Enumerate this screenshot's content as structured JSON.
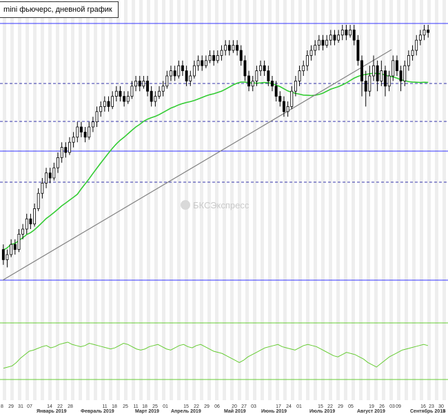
{
  "title": "mini фьючерс, дневной график",
  "watermark": "БКСЭкспресс",
  "colors": {
    "candle_up": "#ffffff",
    "candle_down": "#000000",
    "ma": "#33cc33",
    "hline_solid": "#3333ff",
    "hline_dashed": "#3333aa",
    "trendline": "#808080",
    "oscillator": "#66cc33",
    "oscillator_bounds": "#66cc33",
    "stripe": "#eeeeee"
  },
  "chart_data": [
    {
      "type": "candlestick",
      "series_name": "",
      "ylim": [
        0,
        100
      ],
      "note": "price values in relative scale 0-100 (no price axis printed)",
      "candles": [
        [
          12,
          8,
          14,
          6
        ],
        [
          8,
          10,
          12,
          5
        ],
        [
          10,
          14,
          16,
          9
        ],
        [
          14,
          12,
          16,
          10
        ],
        [
          12,
          18,
          20,
          11
        ],
        [
          18,
          20,
          22,
          16
        ],
        [
          20,
          24,
          26,
          18
        ],
        [
          24,
          22,
          26,
          20
        ],
        [
          22,
          28,
          30,
          21
        ],
        [
          28,
          34,
          36,
          27
        ],
        [
          34,
          38,
          40,
          32
        ],
        [
          38,
          42,
          44,
          36
        ],
        [
          42,
          40,
          44,
          38
        ],
        [
          40,
          44,
          46,
          39
        ],
        [
          44,
          48,
          50,
          42
        ],
        [
          48,
          52,
          54,
          46
        ],
        [
          52,
          50,
          54,
          48
        ],
        [
          50,
          54,
          56,
          49
        ],
        [
          54,
          56,
          58,
          52
        ],
        [
          56,
          60,
          62,
          54
        ],
        [
          60,
          58,
          62,
          56
        ],
        [
          58,
          56,
          60,
          54
        ],
        [
          56,
          60,
          62,
          55
        ],
        [
          60,
          62,
          64,
          58
        ],
        [
          62,
          66,
          68,
          60
        ],
        [
          66,
          68,
          70,
          64
        ],
        [
          68,
          70,
          72,
          66
        ],
        [
          70,
          68,
          72,
          66
        ],
        [
          68,
          72,
          74,
          67
        ],
        [
          72,
          74,
          76,
          70
        ],
        [
          74,
          72,
          76,
          70
        ],
        [
          72,
          70,
          74,
          68
        ],
        [
          70,
          72,
          74,
          69
        ],
        [
          72,
          76,
          78,
          71
        ],
        [
          76,
          78,
          80,
          74
        ],
        [
          78,
          76,
          80,
          74
        ],
        [
          76,
          78,
          80,
          75
        ],
        [
          78,
          74,
          80,
          72
        ],
        [
          74,
          70,
          76,
          68
        ],
        [
          70,
          72,
          74,
          68
        ],
        [
          72,
          74,
          76,
          71
        ],
        [
          74,
          76,
          78,
          72
        ],
        [
          76,
          80,
          82,
          75
        ],
        [
          80,
          82,
          84,
          78
        ],
        [
          82,
          80,
          84,
          78
        ],
        [
          80,
          84,
          86,
          79
        ],
        [
          84,
          82,
          86,
          80
        ],
        [
          82,
          78,
          84,
          76
        ],
        [
          78,
          80,
          82,
          76
        ],
        [
          80,
          84,
          86,
          79
        ],
        [
          84,
          86,
          88,
          82
        ],
        [
          86,
          84,
          88,
          82
        ],
        [
          84,
          86,
          88,
          83
        ],
        [
          86,
          88,
          90,
          85
        ],
        [
          88,
          86,
          90,
          84
        ],
        [
          86,
          88,
          90,
          85
        ],
        [
          88,
          90,
          92,
          86
        ],
        [
          90,
          92,
          94,
          88
        ],
        [
          92,
          90,
          94,
          88
        ],
        [
          90,
          92,
          94,
          89
        ],
        [
          92,
          90,
          94,
          88
        ],
        [
          90,
          86,
          92,
          84
        ],
        [
          86,
          80,
          88,
          78
        ],
        [
          80,
          76,
          82,
          74
        ],
        [
          76,
          78,
          80,
          74
        ],
        [
          78,
          82,
          84,
          76
        ],
        [
          82,
          84,
          86,
          80
        ],
        [
          84,
          82,
          86,
          80
        ],
        [
          82,
          78,
          84,
          76
        ],
        [
          78,
          76,
          80,
          74
        ],
        [
          76,
          72,
          78,
          70
        ],
        [
          72,
          70,
          74,
          68
        ],
        [
          70,
          66,
          72,
          64
        ],
        [
          66,
          68,
          70,
          64
        ],
        [
          68,
          74,
          76,
          67
        ],
        [
          74,
          78,
          80,
          72
        ],
        [
          78,
          82,
          84,
          76
        ],
        [
          82,
          84,
          86,
          80
        ],
        [
          84,
          88,
          90,
          82
        ],
        [
          88,
          90,
          92,
          86
        ],
        [
          90,
          92,
          94,
          88
        ],
        [
          92,
          94,
          96,
          90
        ],
        [
          94,
          92,
          96,
          90
        ],
        [
          92,
          94,
          96,
          91
        ],
        [
          94,
          96,
          98,
          92
        ],
        [
          96,
          94,
          98,
          92
        ],
        [
          94,
          96,
          98,
          93
        ],
        [
          96,
          98,
          100,
          94
        ],
        [
          98,
          96,
          100,
          94
        ],
        [
          96,
          98,
          100,
          95
        ],
        [
          98,
          94,
          100,
          92
        ],
        [
          94,
          86,
          96,
          84
        ],
        [
          86,
          78,
          88,
          72
        ],
        [
          78,
          74,
          82,
          68
        ],
        [
          74,
          80,
          84,
          72
        ],
        [
          80,
          84,
          88,
          78
        ],
        [
          84,
          78,
          86,
          74
        ],
        [
          78,
          82,
          86,
          76
        ],
        [
          82,
          76,
          84,
          72
        ],
        [
          76,
          80,
          82,
          74
        ],
        [
          80,
          86,
          88,
          78
        ],
        [
          86,
          82,
          88,
          80
        ],
        [
          82,
          78,
          84,
          74
        ],
        [
          78,
          84,
          86,
          76
        ],
        [
          84,
          88,
          90,
          82
        ],
        [
          88,
          90,
          92,
          86
        ],
        [
          90,
          94,
          96,
          88
        ],
        [
          94,
          96,
          98,
          92
        ],
        [
          96,
          98,
          100,
          94
        ],
        [
          98,
          97,
          100,
          95
        ]
      ]
    },
    {
      "type": "line",
      "series_name": "",
      "ylim": [
        0,
        100
      ],
      "note": "oscillator in lower pane, relative scale 0-100",
      "values": [
        20,
        22,
        24,
        30,
        38,
        44,
        50,
        52,
        55,
        58,
        60,
        56,
        58,
        62,
        64,
        66,
        62,
        60,
        58,
        60,
        64,
        62,
        60,
        58,
        56,
        54,
        56,
        60,
        64,
        62,
        58,
        54,
        52,
        54,
        58,
        60,
        62,
        58,
        54,
        52,
        56,
        60,
        62,
        58,
        56,
        60,
        62,
        58,
        54,
        50,
        48,
        46,
        42,
        38,
        34,
        30,
        34,
        40,
        44,
        48,
        52,
        56,
        58,
        60,
        62,
        58,
        56,
        54,
        52,
        56,
        60,
        62,
        60,
        58,
        54,
        50,
        46,
        42,
        40,
        44,
        48,
        46,
        44,
        40,
        36,
        30,
        26,
        22,
        28,
        34,
        40,
        44,
        48,
        52,
        54,
        56,
        58,
        60,
        62,
        60
      ]
    }
  ],
  "x_labels": [
    "29",
    "31",
    "07",
    "Январь 2019",
    "14",
    "22",
    "28",
    "Февраль 2019",
    "11",
    "18",
    "25",
    "Март 2019",
    "11",
    "18",
    "25",
    "01",
    "Апрель 2019",
    "15",
    "22",
    "29",
    "06",
    "Май 2019",
    "20",
    "27",
    "03",
    "Июнь 2019",
    "17",
    "24",
    "01",
    "Июль 2019",
    "15",
    "22",
    "29",
    "05",
    "Август 2019",
    "19",
    "26",
    "03",
    "09",
    "Сентябрь 2019",
    "16",
    "23",
    "30"
  ],
  "first_label": "8",
  "last_label": "B"
}
